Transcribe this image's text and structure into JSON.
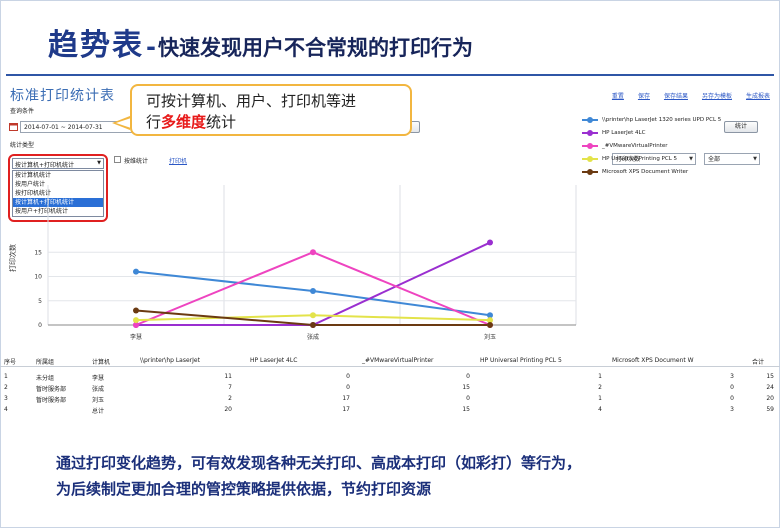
{
  "slide": {
    "title_big": "趋势表",
    "title_dash": "-",
    "title_rest": "快速发现用户不合常规的打印行为",
    "bottom_line1": "通过打印变化趋势，可有效发现各种无关打印、高成本打印（如彩打）等行为，",
    "bottom_line2": "为后续制定更加合理的管控策略提供依据，节约打印资源"
  },
  "app": {
    "title": "标准打印统计表",
    "links": [
      "重置",
      "保存",
      "保存结果",
      "另存为模板",
      "生成报表"
    ],
    "query_label": "查询条件",
    "date_range": "2014-07-01 ~ 2014-07-31",
    "filter1": "全部",
    "filter2": "全部",
    "ellipsis": "...",
    "advanced_button": "高级",
    "stats_button": "统计",
    "stat_type_label": "统计类型",
    "checkbox_label": "按维统计",
    "link_filter": "打印机",
    "right_select1": "打印次数",
    "right_select2": "全部",
    "dropdown": {
      "selected": "按计算机+打印机统计",
      "options": [
        "按计算机统计",
        "按用户统计",
        "按打印机统计",
        "按计算机+打印机统计",
        "按用户+打印机统计"
      ],
      "active_index": 3
    }
  },
  "callout": {
    "prefix": "可按计算机、用户、打印机等进",
    "line2_start": "行",
    "highlight": "多维度",
    "line2_end": "统计"
  },
  "chart_data": {
    "type": "line",
    "categories": [
      "李慧",
      "张成",
      "刘玉"
    ],
    "ylabel": "打印次数",
    "yticks": [
      0,
      5,
      10,
      15
    ],
    "ylim": [
      0,
      20
    ],
    "series": [
      {
        "name": "\\\\printer\\hp LaserJet 1320 series UPD PCL 5",
        "color": "#3f88d6",
        "values": [
          11,
          7,
          2
        ]
      },
      {
        "name": "HP LaserJet 4LC",
        "color": "#9a2fd0",
        "values": [
          0,
          0,
          17
        ]
      },
      {
        "name": "_#VMwareVirtualPrinter",
        "color": "#ee44c0",
        "values": [
          0,
          15,
          0
        ]
      },
      {
        "name": "HP Universal Printing PCL 5",
        "color": "#e3e34a",
        "values": [
          1,
          2,
          1
        ]
      },
      {
        "name": "Microsoft XPS Document Writer",
        "color": "#6b3a12",
        "values": [
          3,
          0,
          0
        ]
      }
    ]
  },
  "table": {
    "headers": [
      "序号",
      "所属组",
      "计算机",
      "\\\\printer\\hp LaserJet",
      "HP LaserJet 4LC",
      "_#VMwareVirtualPrinter",
      "HP Universal Printing PCL 5",
      "Microsoft XPS Document W",
      "合计"
    ],
    "rows": [
      [
        "1",
        "未分组",
        "李慧",
        "11",
        "0",
        "0",
        "1",
        "3",
        "15"
      ],
      [
        "2",
        "暂时服务部",
        "张成",
        "7",
        "0",
        "15",
        "2",
        "0",
        "24"
      ],
      [
        "3",
        "暂时服务部",
        "刘玉",
        "2",
        "17",
        "0",
        "1",
        "0",
        "20"
      ],
      [
        "4",
        "",
        "总计",
        "20",
        "17",
        "15",
        "4",
        "3",
        "59"
      ]
    ]
  }
}
